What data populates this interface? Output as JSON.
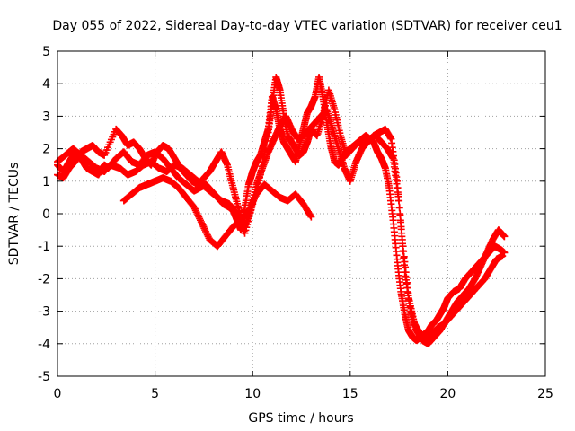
{
  "chart_data": {
    "type": "scatter",
    "title": "Day 055 of 2022, Sidereal Day-to-day VTEC variation (SDTVAR) for receiver ceu1",
    "xlabel": "GPS time / hours",
    "ylabel": "SDTVAR / TECUs",
    "xlim": [
      0,
      25
    ],
    "ylim": [
      -5,
      5
    ],
    "xticks": [
      0,
      5,
      10,
      15,
      20,
      25
    ],
    "yticks": [
      -5,
      -4,
      -3,
      -2,
      -1,
      0,
      1,
      2,
      3,
      4,
      5
    ],
    "grid": true,
    "marker": "+",
    "color": "#ff0000",
    "series": [
      {
        "x": [
          0.0,
          0.3,
          0.6,
          0.9,
          1.2,
          1.5,
          1.8,
          2.1,
          2.4,
          2.6,
          3.0,
          3.4,
          3.8,
          4.2,
          4.6,
          5.0,
          5.4,
          5.8,
          6.2,
          6.6,
          7.0,
          7.3,
          7.6,
          7.9,
          8.2,
          8.5,
          8.8,
          9.0,
          9.2,
          9.4,
          9.6,
          9.8,
          10.0,
          10.2,
          10.4,
          10.6,
          10.8,
          11.0,
          11.2,
          11.4,
          11.6,
          11.8,
          12.0,
          12.2,
          12.4,
          12.6,
          12.8,
          13.0,
          13.2,
          13.4,
          13.6,
          13.8,
          14.0,
          14.2,
          14.4,
          14.6,
          14.8,
          15.0,
          15.2,
          15.4,
          15.6,
          15.8,
          16.0,
          16.2,
          16.4,
          16.6,
          16.8,
          17.0,
          17.2,
          17.4,
          17.6,
          17.8,
          18.0,
          18.2,
          18.4,
          18.6,
          18.8,
          19.0,
          19.2,
          19.4,
          19.6,
          19.8,
          20.0,
          20.3,
          20.6,
          20.9,
          21.2,
          21.5,
          21.8,
          22.1,
          22.4,
          22.7,
          22.9
        ],
        "y": [
          1.5,
          1.3,
          1.6,
          1.9,
          1.7,
          1.4,
          1.3,
          1.2,
          1.5,
          1.4,
          1.7,
          1.9,
          1.6,
          1.5,
          1.8,
          1.9,
          1.7,
          1.4,
          1.1,
          0.9,
          0.7,
          0.8,
          0.9,
          0.7,
          0.5,
          0.3,
          0.2,
          0.1,
          -0.2,
          -0.5,
          0.2,
          0.9,
          1.3,
          1.6,
          1.8,
          2.2,
          2.6,
          3.6,
          3.2,
          2.6,
          2.2,
          2.0,
          1.8,
          1.6,
          2.1,
          2.6,
          3.1,
          3.3,
          3.6,
          4.2,
          3.6,
          2.8,
          2.1,
          1.6,
          1.5,
          1.7,
          1.9,
          2.0,
          2.1,
          2.2,
          2.3,
          2.4,
          2.3,
          2.2,
          1.9,
          1.7,
          1.4,
          0.8,
          -0.2,
          -1.4,
          -2.4,
          -3.1,
          -3.6,
          -3.8,
          -3.9,
          -3.8,
          -3.7,
          -3.6,
          -3.4,
          -3.3,
          -3.1,
          -2.9,
          -2.6,
          -2.4,
          -2.3,
          -2.0,
          -1.8,
          -1.6,
          -1.4,
          -1.2,
          -1.0,
          -1.1,
          -1.2
        ]
      },
      {
        "x": [
          0.0,
          0.3,
          0.6,
          0.9,
          1.2,
          1.5,
          1.8,
          2.1,
          2.4,
          3.0,
          3.3,
          3.6,
          3.9,
          4.2,
          4.5,
          4.8,
          5.1,
          5.4,
          5.7,
          6.0,
          6.3,
          6.6,
          6.9,
          7.2,
          7.5,
          7.8,
          8.1,
          8.4,
          8.7,
          9.0,
          9.3,
          9.6,
          9.9,
          10.2,
          10.5,
          10.8,
          11.1,
          11.4,
          11.7,
          12.0,
          12.3,
          12.6,
          12.9,
          13.2,
          13.5,
          13.8,
          14.1,
          14.4,
          14.7,
          15.0,
          15.3,
          15.6,
          15.9,
          16.2,
          16.5,
          16.8,
          17.1,
          17.4,
          17.7,
          18.0,
          18.3,
          18.6,
          18.9,
          19.2,
          19.5,
          19.8,
          20.1,
          20.4,
          20.7,
          21.0,
          21.3,
          21.6,
          21.9,
          22.2,
          22.5,
          22.8
        ],
        "y": [
          1.2,
          1.1,
          1.4,
          1.6,
          1.9,
          2.0,
          2.1,
          1.9,
          1.8,
          2.6,
          2.4,
          2.1,
          2.2,
          2.0,
          1.7,
          1.5,
          1.9,
          2.1,
          2.0,
          1.7,
          1.4,
          1.2,
          1.0,
          0.9,
          1.1,
          1.3,
          1.6,
          1.9,
          1.5,
          0.8,
          0.1,
          -0.4,
          0.1,
          0.9,
          1.4,
          1.9,
          2.3,
          2.7,
          3.0,
          2.6,
          2.3,
          2.4,
          2.6,
          2.8,
          3.0,
          3.2,
          2.6,
          2.0,
          1.4,
          1.0,
          1.6,
          2.0,
          2.2,
          2.4,
          2.5,
          2.6,
          2.3,
          1.0,
          -1.0,
          -2.6,
          -3.4,
          -3.7,
          -3.9,
          -3.7,
          -3.5,
          -3.4,
          -3.2,
          -3.0,
          -2.8,
          -2.6,
          -2.4,
          -2.2,
          -2.0,
          -1.7,
          -1.4,
          -1.3
        ]
      },
      {
        "x": [
          0.0,
          0.4,
          0.8,
          1.2,
          1.6,
          2.0,
          2.4,
          2.7,
          3.2,
          3.6,
          4.0,
          4.4,
          4.8,
          5.2,
          5.6,
          6.0,
          6.4,
          6.8,
          7.2,
          7.6,
          8.0,
          8.4,
          8.8,
          9.2,
          9.6,
          10.0,
          10.4,
          10.8,
          11.0,
          11.2,
          11.4,
          11.6,
          11.8,
          12.0,
          12.2,
          12.4,
          12.6,
          12.8,
          13.0,
          13.3,
          13.6,
          13.9,
          14.2,
          14.5,
          14.8,
          15.1,
          15.4,
          15.7,
          16.0,
          16.3,
          16.6,
          16.9,
          17.2,
          17.5,
          17.8,
          18.1,
          18.4,
          18.7,
          19.0,
          19.3,
          19.6,
          19.9,
          20.2,
          20.5,
          20.8,
          21.1,
          21.4,
          21.7,
          22.0,
          22.3,
          22.6,
          22.9
        ],
        "y": [
          1.6,
          1.8,
          2.0,
          1.8,
          1.6,
          1.4,
          1.3,
          1.5,
          1.4,
          1.2,
          1.3,
          1.5,
          1.6,
          1.4,
          1.3,
          1.5,
          1.4,
          1.2,
          1.0,
          0.8,
          0.6,
          0.4,
          0.3,
          0.0,
          -0.6,
          0.3,
          1.2,
          2.5,
          3.4,
          4.2,
          3.8,
          3.0,
          2.4,
          2.2,
          2.0,
          1.8,
          1.9,
          2.2,
          2.6,
          2.4,
          3.0,
          3.8,
          3.2,
          2.4,
          1.8,
          2.0,
          2.2,
          2.1,
          2.3,
          2.4,
          2.2,
          2.0,
          1.7,
          0.4,
          -1.8,
          -3.0,
          -3.6,
          -3.9,
          -4.0,
          -3.8,
          -3.6,
          -3.3,
          -3.0,
          -2.7,
          -2.5,
          -2.3,
          -2.0,
          -1.6,
          -1.2,
          -0.8,
          -0.5,
          -0.7
        ]
      },
      {
        "x": [
          3.4,
          3.8,
          4.2,
          4.6,
          5.0,
          5.4,
          5.8,
          6.2,
          6.6,
          7.0,
          7.4,
          7.8,
          8.2,
          8.6,
          9.0,
          9.4,
          9.8,
          10.2,
          10.6,
          11.0,
          11.4,
          11.8,
          12.2,
          12.6,
          13.0
        ],
        "y": [
          0.4,
          0.6,
          0.8,
          0.9,
          1.0,
          1.1,
          1.0,
          0.8,
          0.5,
          0.2,
          -0.3,
          -0.8,
          -1.0,
          -0.7,
          -0.4,
          -0.2,
          0.1,
          0.6,
          0.9,
          0.7,
          0.5,
          0.4,
          0.6,
          0.3,
          -0.1
        ]
      }
    ]
  }
}
